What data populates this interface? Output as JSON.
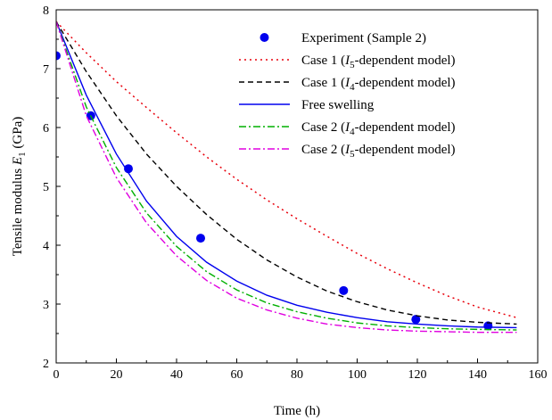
{
  "chart_data": {
    "type": "line",
    "title": "",
    "xlabel": "Time (h)",
    "ylabel": {
      "prefix": "Tensile modulus ",
      "var": "E",
      "sub": "1",
      "suffix": "  (GPa)"
    },
    "xlim": [
      0,
      160
    ],
    "ylim": [
      2,
      8
    ],
    "xticks": [
      0,
      20,
      40,
      60,
      80,
      100,
      120,
      140,
      160
    ],
    "yticks": [
      2,
      3,
      4,
      5,
      6,
      7,
      8
    ],
    "grid": false,
    "legend_position": "top-right",
    "series": [
      {
        "name": "Experiment (Sample 2)",
        "kind": "scatter",
        "color": "#0000ee",
        "x": [
          0,
          11.5,
          24,
          48,
          95.5,
          119.5,
          143.5
        ],
        "y": [
          7.22,
          6.2,
          5.3,
          4.12,
          3.23,
          2.74,
          2.63
        ]
      },
      {
        "name": "Case 1 (I5-dependent model)",
        "label": {
          "prefix": "Case 1 (",
          "var": "I",
          "sub": "5",
          "suffix": "-dependent model)"
        },
        "kind": "line",
        "dash": "dotted",
        "color": "#e8000b",
        "x": [
          0,
          10,
          20,
          30,
          40,
          50,
          60,
          70,
          80,
          90,
          100,
          110,
          120,
          130,
          140,
          153
        ],
        "y": [
          7.8,
          7.27,
          6.78,
          6.34,
          5.91,
          5.5,
          5.12,
          4.77,
          4.45,
          4.15,
          3.86,
          3.6,
          3.36,
          3.14,
          2.95,
          2.77
        ]
      },
      {
        "name": "Case 1 (I4-dependent model)",
        "label": {
          "prefix": "Case 1 (",
          "var": "I",
          "sub": "4",
          "suffix": "-dependent model)"
        },
        "kind": "line",
        "dash": "dashed",
        "color": "#000000",
        "x": [
          0,
          10,
          20,
          30,
          40,
          50,
          60,
          70,
          80,
          90,
          100,
          110,
          120,
          130,
          140,
          153
        ],
        "y": [
          7.8,
          6.95,
          6.2,
          5.55,
          5.0,
          4.52,
          4.1,
          3.75,
          3.46,
          3.22,
          3.04,
          2.9,
          2.8,
          2.73,
          2.69,
          2.66
        ]
      },
      {
        "name": "Free swelling",
        "kind": "line",
        "dash": "solid",
        "color": "#0000ee",
        "x": [
          0,
          10,
          20,
          30,
          40,
          50,
          60,
          70,
          80,
          90,
          100,
          110,
          120,
          130,
          140,
          153
        ],
        "y": [
          7.8,
          6.55,
          5.55,
          4.75,
          4.15,
          3.71,
          3.39,
          3.15,
          2.98,
          2.86,
          2.77,
          2.7,
          2.66,
          2.63,
          2.61,
          2.6
        ]
      },
      {
        "name": "Case 2 (I4-dependent model)",
        "label": {
          "prefix": "Case 2 (",
          "var": "I",
          "sub": "4",
          "suffix": "-dependent model)"
        },
        "kind": "line",
        "dash": "dashdot",
        "color": "#00b000",
        "x": [
          0,
          10,
          20,
          30,
          40,
          50,
          60,
          70,
          80,
          90,
          100,
          110,
          120,
          130,
          140,
          153
        ],
        "y": [
          7.8,
          6.35,
          5.32,
          4.55,
          3.98,
          3.55,
          3.24,
          3.02,
          2.87,
          2.76,
          2.68,
          2.63,
          2.6,
          2.58,
          2.57,
          2.56
        ]
      },
      {
        "name": "Case 2 (I5-dependent model)",
        "label": {
          "prefix": "Case 2 (",
          "var": "I",
          "sub": "5",
          "suffix": "-dependent model)"
        },
        "kind": "line",
        "dash": "dashdot",
        "color": "#e000e0",
        "x": [
          0,
          10,
          20,
          30,
          40,
          50,
          60,
          70,
          80,
          90,
          100,
          110,
          120,
          130,
          140,
          153
        ],
        "y": [
          7.8,
          6.2,
          5.15,
          4.38,
          3.82,
          3.4,
          3.1,
          2.9,
          2.76,
          2.66,
          2.6,
          2.56,
          2.54,
          2.53,
          2.52,
          2.52
        ]
      }
    ]
  }
}
